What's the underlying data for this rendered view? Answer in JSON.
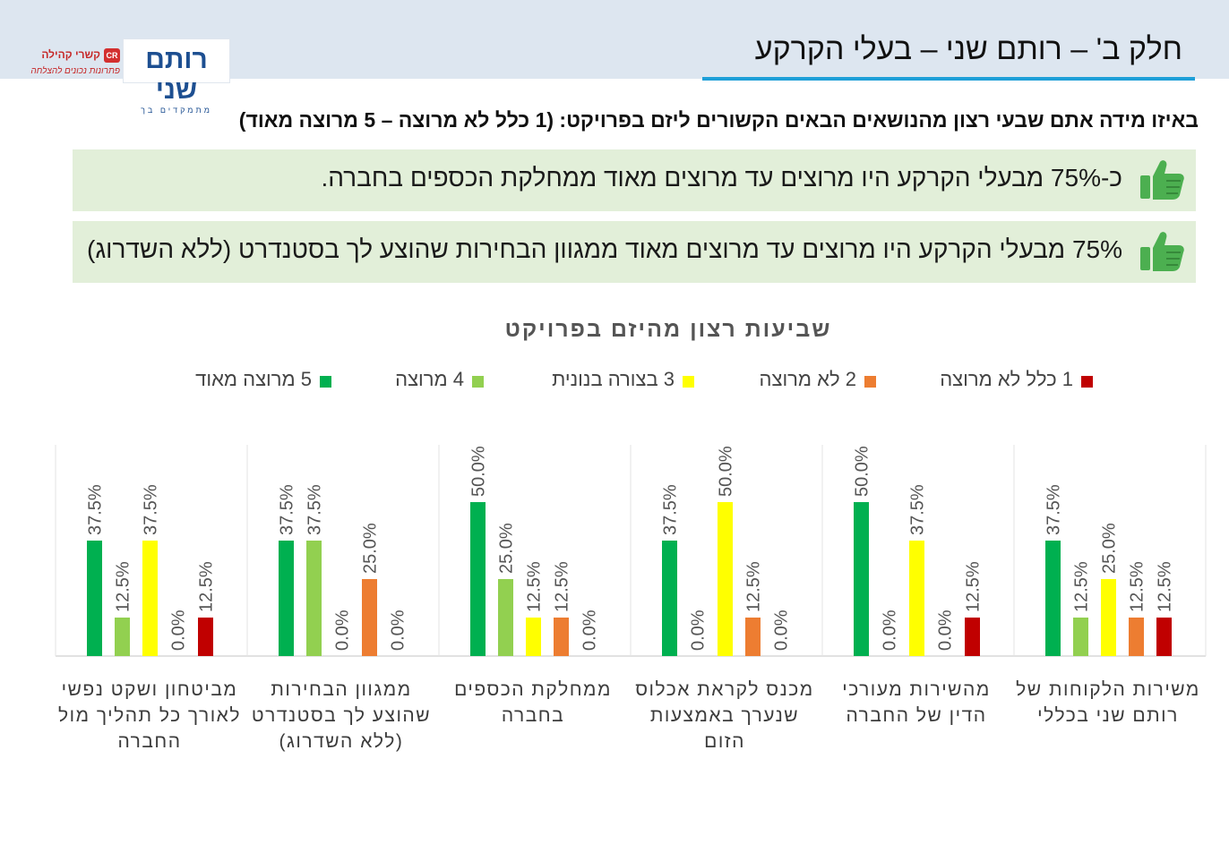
{
  "header": {
    "title": "חלק ב' – רותם שני – בעלי הקרקע",
    "logo_main_name": "רותם שני",
    "logo_main_sub": "מתמקדים בך",
    "logo_small_name": "קשרי קהילה",
    "logo_small_badge": "CR",
    "logo_small_tagline": "פתרונות נכונים להצלחה",
    "accent_color": "#1e9fd8"
  },
  "question": "באיזו מידה אתם שבעי רצון מהנושאים הבאים הקשורים ליזם בפרויקט:  (1 כלל לא מרוצה – 5 מרוצה מאוד)",
  "highlights": [
    {
      "text": "כ-75% מבעלי הקרקע היו מרוצים עד מרוצים מאוד ממחלקת הכספים בחברה.",
      "icon": "thumbs-up-icon"
    },
    {
      "text": "75% מבעלי הקרקע  היו מרוצים עד מרוצים מאוד ממגוון הבחירות שהוצע לך בסטנדרט (ללא השדרוג)",
      "icon": "thumbs-up-icon"
    }
  ],
  "chart_data": {
    "type": "bar",
    "title": "שביעות רצון מהיזם בפרויקט",
    "legend_position": "top",
    "value_format": "percent-1-decimal",
    "ylim": [
      0,
      0.5
    ],
    "categories": [
      "משירות הלקוחות של רותם שני בכללי",
      "מהשירות מעורכי הדין של החברה",
      "מכנס לקראת אכלוס שנערך באמצעות הזום",
      "ממחלקת הכספים בחברה",
      "ממגוון הבחירות שהוצע לך בסטנדרט (ללא השדרוג)",
      "מביטחון ושקט נפשי לאורך כל תהליך מול החברה"
    ],
    "series": [
      {
        "name": "5 מרוצה מאוד",
        "color": "#00b050",
        "values": [
          0.375,
          0.5,
          0.375,
          0.5,
          0.375,
          0.375
        ]
      },
      {
        "name": "4 מרוצה",
        "color": "#92d050",
        "values": [
          0.125,
          0.0,
          0.0,
          0.25,
          0.375,
          0.125
        ]
      },
      {
        "name": "3 בצורה בנונית",
        "color": "#ffff00",
        "values": [
          0.25,
          0.375,
          0.5,
          0.125,
          0.0,
          0.375
        ]
      },
      {
        "name": "2 לא מרוצה",
        "color": "#ed7d31",
        "values": [
          0.125,
          0.0,
          0.125,
          0.125,
          0.25,
          0.0
        ]
      },
      {
        "name": "1 כלל לא מרוצה",
        "color": "#c00000",
        "values": [
          0.125,
          0.125,
          0.0,
          0.0,
          0.0,
          0.125
        ]
      }
    ]
  }
}
